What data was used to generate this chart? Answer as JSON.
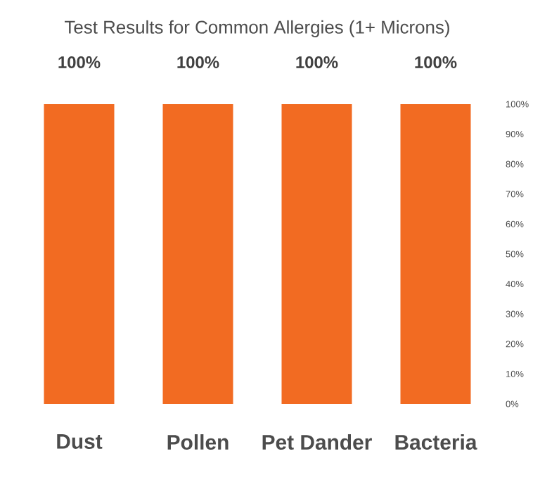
{
  "chart_data": {
    "type": "bar",
    "title": "Test Results for Common Allergies (1+ Microns)",
    "categories": [
      "Dust",
      "Pollen",
      "Pet Dander",
      "Bacteria"
    ],
    "values": [
      100,
      100,
      100,
      100
    ],
    "value_labels": [
      "100%",
      "100%",
      "100%",
      "100%"
    ],
    "color": "#f26b22",
    "ylim": [
      0,
      100
    ],
    "yticks": [
      {
        "value": 0,
        "label": "0%"
      },
      {
        "value": 10,
        "label": "10%"
      },
      {
        "value": 20,
        "label": "20%"
      },
      {
        "value": 30,
        "label": "30%"
      },
      {
        "value": 40,
        "label": "40%"
      },
      {
        "value": 50,
        "label": "50%"
      },
      {
        "value": 60,
        "label": "60%"
      },
      {
        "value": 70,
        "label": "70%"
      },
      {
        "value": 80,
        "label": "80%"
      },
      {
        "value": 90,
        "label": "90%"
      },
      {
        "value": 100,
        "label": "100%"
      }
    ]
  }
}
